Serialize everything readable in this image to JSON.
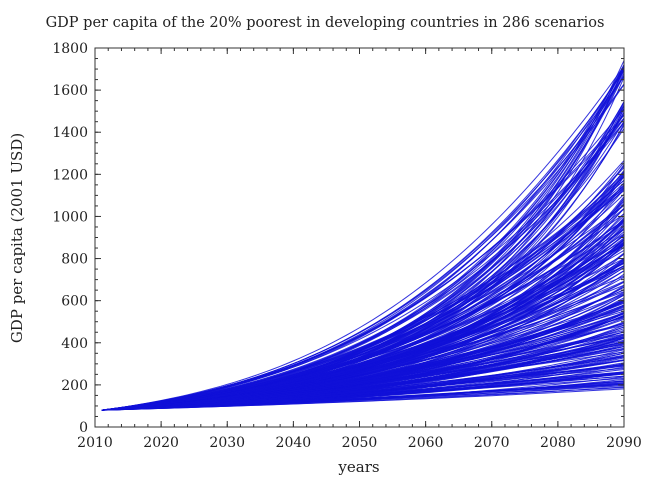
{
  "chart_data": {
    "type": "line",
    "title": "GDP per capita of the 20% poorest in developing countries in 286 scenarios",
    "xlabel": "years",
    "ylabel": "GDP per capita (2001 USD)",
    "xlim": [
      2010,
      2090
    ],
    "ylim": [
      0,
      1800
    ],
    "x_ticks": [
      2010,
      2020,
      2030,
      2040,
      2050,
      2060,
      2070,
      2080,
      2090
    ],
    "y_ticks": [
      0,
      200,
      400,
      600,
      800,
      1000,
      1200,
      1400,
      1600,
      1800
    ],
    "x_minor_step": 2,
    "y_minor_step": 50,
    "grid": false,
    "legend": "none",
    "color": "#1010d8",
    "scenario_count": 286,
    "x": [
      2011,
      2090
    ],
    "series_start_value": 80,
    "series_end_values": [
      1730,
      1715,
      1700,
      1690,
      1675,
      1660,
      1645,
      1640,
      1560,
      1540,
      1525,
      1510,
      1500,
      1480,
      1460,
      1440,
      1420,
      1280,
      1270,
      1260,
      1250,
      1240,
      1230,
      1215,
      1200,
      1190,
      1175,
      1160,
      1140,
      1120,
      1100,
      1080,
      1060,
      1040,
      1020,
      1000,
      985,
      970,
      955,
      940,
      930,
      920,
      910,
      900,
      890,
      880,
      870,
      860,
      850,
      840,
      830,
      820,
      810,
      800,
      790,
      780,
      770,
      760,
      750,
      740,
      730,
      720,
      710,
      700,
      690,
      680,
      670,
      660,
      650,
      640,
      630,
      620,
      610,
      600,
      590,
      580,
      570,
      560,
      550,
      540,
      530,
      520,
      510,
      500,
      490,
      480,
      470,
      460,
      450,
      440,
      430,
      420,
      410,
      400,
      390,
      380,
      370,
      360,
      350,
      340,
      330,
      320,
      310,
      300,
      290,
      280,
      270,
      260,
      250,
      240,
      230,
      220,
      210,
      200,
      190,
      180
    ]
  }
}
